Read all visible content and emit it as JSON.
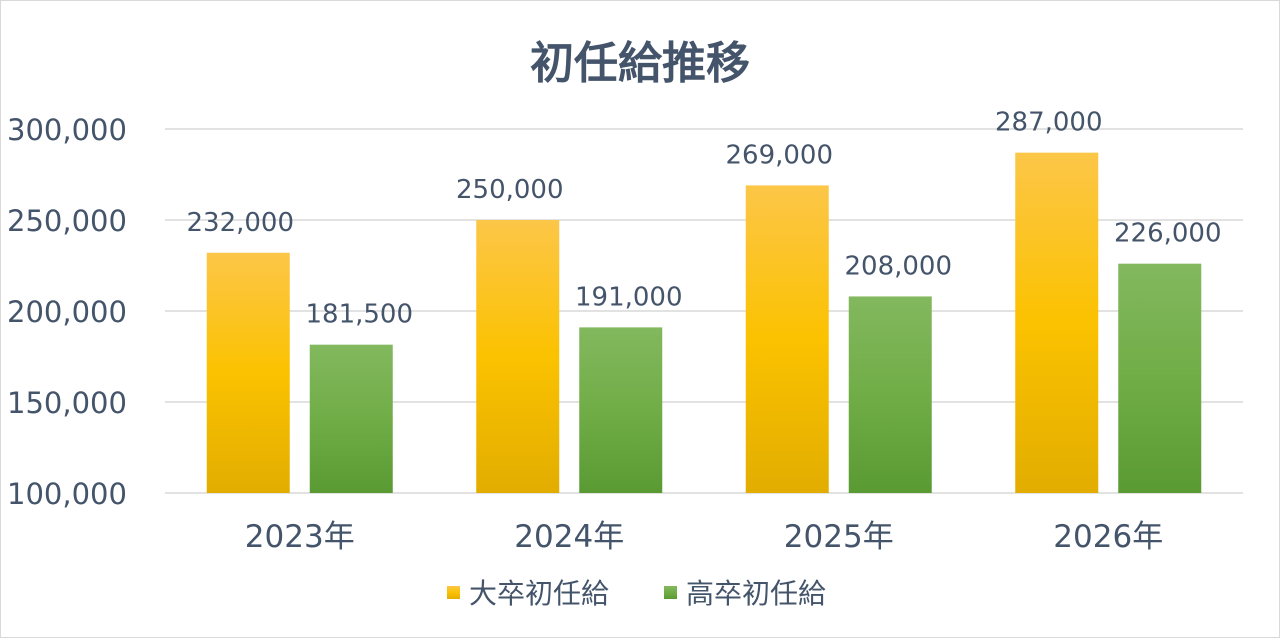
{
  "chart_data": {
    "type": "bar",
    "title": "初任給推移",
    "categories": [
      "2023年",
      "2024年",
      "2025年",
      "2026年"
    ],
    "series": [
      {
        "name": "大卒初任給",
        "values": [
          232000,
          250000,
          269000,
          287000
        ],
        "color": "#f5b800"
      },
      {
        "name": "高卒初任給",
        "values": [
          181500,
          191000,
          208000,
          226000
        ],
        "color": "#6aa83c"
      }
    ],
    "data_labels": [
      [
        "232,000",
        "250,000",
        "269,000",
        "287,000"
      ],
      [
        "181,500",
        "191,000",
        "208,000",
        "226,000"
      ]
    ],
    "y_ticks": [
      "100,000",
      "150,000",
      "200,000",
      "250,000",
      "300,000"
    ],
    "y_tick_values": [
      100000,
      150000,
      200000,
      250000,
      300000
    ],
    "ylim": [
      100000,
      300000
    ],
    "grid": true,
    "legend_position": "bottom"
  }
}
